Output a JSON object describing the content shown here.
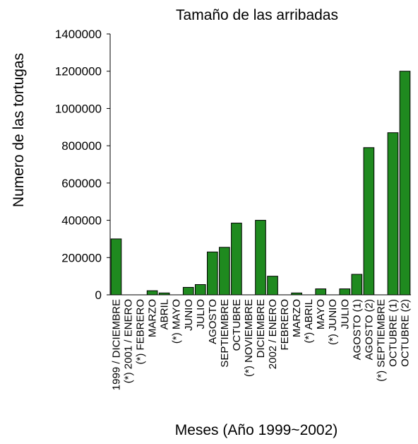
{
  "chart_data": {
    "type": "bar",
    "title": "Tamaño de las arribadas",
    "xlabel": "Meses (Año 1999~2002)",
    "ylabel": "Numero de las tortugas",
    "ylim": [
      0,
      1400000
    ],
    "yticks": [
      0,
      200000,
      400000,
      600000,
      800000,
      1000000,
      1200000,
      1400000
    ],
    "grid": false,
    "bar_color": "#1f8a1f",
    "categories": [
      "1999 / DICIEMBRE",
      "(*) 2001 / ENERO",
      "(*) FEBRERO",
      "MARZO",
      "ABRIL",
      "(*) MAYO",
      "JUNIO",
      "JULIO",
      "AGOSTO",
      "SEPTIEMBRE",
      "OCTUBRE",
      "(*) NOVIEMBRE",
      "DICIEMBRE",
      "2002 / ENERO",
      "FEBRERO",
      "MARZO",
      "(*) ABRIL",
      "MAYO",
      "(*) JUNIO",
      "JULIO",
      "AGOSTO (1)",
      "AGOSTO (2)",
      "(*) SEPTIEMBRE",
      "OCTUBRE (1)",
      "OCTUBRE (2)"
    ],
    "values": [
      300000,
      0,
      0,
      22000,
      10000,
      0,
      40000,
      55000,
      230000,
      255000,
      385000,
      0,
      400000,
      100000,
      0,
      10000,
      0,
      32000,
      0,
      32000,
      110000,
      790000,
      0,
      870000,
      1200000
    ]
  }
}
